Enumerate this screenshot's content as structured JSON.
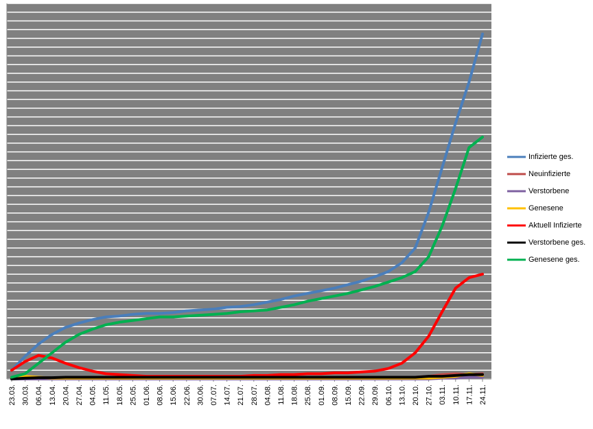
{
  "chart_data": {
    "type": "line",
    "categories": [
      "23.03.",
      "30.03.",
      "06.04.",
      "13.04.",
      "20.04.",
      "27.04.",
      "04.05.",
      "11.05.",
      "18.05.",
      "25.05.",
      "01.06.",
      "08.06.",
      "15.06.",
      "22.06.",
      "30.06.",
      "07.07.",
      "14.07.",
      "21.07.",
      "28.07.",
      "04.08.",
      "11.08.",
      "18.08.",
      "25.08.",
      "01.09.",
      "08.09.",
      "15.09.",
      "22.09.",
      "29.09.",
      "06.10.",
      "13.10.",
      "20.10.",
      "27.10.",
      "03.11.",
      "10.11.",
      "17.11.",
      "24.11."
    ],
    "series": [
      {
        "name": "Infizierte ges.",
        "color": "#4a7ebb",
        "values": [
          1.0,
          2.6,
          4.0,
          5.1,
          5.9,
          6.4,
          6.8,
          7.1,
          7.2,
          7.4,
          7.5,
          7.5,
          7.6,
          7.8,
          7.9,
          8.0,
          8.2,
          8.3,
          8.5,
          8.8,
          9.1,
          9.5,
          9.8,
          10.1,
          10.4,
          10.8,
          11.2,
          11.7,
          12.3,
          13.3,
          15.0,
          19.1,
          24.2,
          29.3,
          34.0,
          39.5
        ]
      },
      {
        "name": "Neuinfizierte",
        "color": "#be4b48",
        "values": [
          0.1,
          0.1,
          0.1,
          0.1,
          0.1,
          0.1,
          0.1,
          0.1,
          0.1,
          0.1,
          0.1,
          0.1,
          0.1,
          0.1,
          0.1,
          0.1,
          0.1,
          0.1,
          0.1,
          0.1,
          0.1,
          0.1,
          0.1,
          0.1,
          0.1,
          0.1,
          0.1,
          0.1,
          0.1,
          0.1,
          0.2,
          0.3,
          0.5,
          0.6,
          0.5,
          0.6
        ]
      },
      {
        "name": "Verstorbene",
        "color": "#7d60a0",
        "values": [
          0,
          0,
          0,
          0,
          0,
          0,
          0,
          0,
          0,
          0,
          0,
          0,
          0,
          0,
          0,
          0,
          0,
          0,
          0,
          0,
          0,
          0,
          0,
          0,
          0,
          0,
          0,
          0,
          0,
          0,
          0,
          0,
          0.1,
          0.1,
          0.2,
          0.2
        ]
      },
      {
        "name": "Genesene",
        "color": "#ffc000",
        "values": [
          0.1,
          0.3,
          0.2,
          0.1,
          0.1,
          0.1,
          0.1,
          0.1,
          0.1,
          0.1,
          0.1,
          0.1,
          0.1,
          0.1,
          0.1,
          0.1,
          0.1,
          0.1,
          0.1,
          0.1,
          0.1,
          0.1,
          0.1,
          0.1,
          0.1,
          0.1,
          0.1,
          0.1,
          0.1,
          0.1,
          0.1,
          0.1,
          0.2,
          0.3,
          0.6,
          0.4
        ]
      },
      {
        "name": "Aktuell Infizierte",
        "color": "#ff0000",
        "values": [
          1.0,
          2.0,
          2.7,
          2.4,
          1.8,
          1.3,
          0.9,
          0.6,
          0.5,
          0.4,
          0.3,
          0.3,
          0.3,
          0.3,
          0.3,
          0.3,
          0.3,
          0.3,
          0.4,
          0.4,
          0.5,
          0.5,
          0.6,
          0.6,
          0.7,
          0.7,
          0.8,
          0.9,
          1.2,
          1.8,
          3.0,
          4.9,
          7.7,
          10.4,
          11.6,
          12.0
        ]
      },
      {
        "name": "Verstorbene ges.",
        "color": "#000000",
        "values": [
          0,
          0.1,
          0.15,
          0.15,
          0.2,
          0.2,
          0.2,
          0.2,
          0.2,
          0.2,
          0.2,
          0.2,
          0.2,
          0.2,
          0.2,
          0.2,
          0.2,
          0.2,
          0.2,
          0.2,
          0.2,
          0.2,
          0.2,
          0.2,
          0.2,
          0.2,
          0.2,
          0.2,
          0.2,
          0.2,
          0.2,
          0.3,
          0.3,
          0.4,
          0.5,
          0.5
        ]
      },
      {
        "name": "Genesene ges.",
        "color": "#00b050",
        "values": [
          0.2,
          0.6,
          1.8,
          3.0,
          4.2,
          5.1,
          5.7,
          6.2,
          6.5,
          6.7,
          6.9,
          7.1,
          7.1,
          7.2,
          7.3,
          7.4,
          7.5,
          7.7,
          7.8,
          7.9,
          8.2,
          8.5,
          8.9,
          9.2,
          9.5,
          9.8,
          10.2,
          10.6,
          11.1,
          11.6,
          12.3,
          14.0,
          17.5,
          21.8,
          26.5,
          27.7
        ]
      }
    ],
    "ylim": [
      0,
      43
    ],
    "yticks": [
      0,
      1,
      2,
      3,
      4,
      5,
      6,
      7,
      8,
      9,
      10,
      11,
      12,
      13,
      14,
      15,
      16,
      17,
      18,
      19,
      20,
      21,
      22,
      23,
      24,
      25,
      26,
      27,
      28,
      29,
      30,
      31,
      32,
      33,
      34,
      35,
      36,
      37,
      38,
      39,
      40,
      41,
      42,
      43
    ],
    "grid": true,
    "plot_background": "#808080",
    "legend": "right"
  }
}
